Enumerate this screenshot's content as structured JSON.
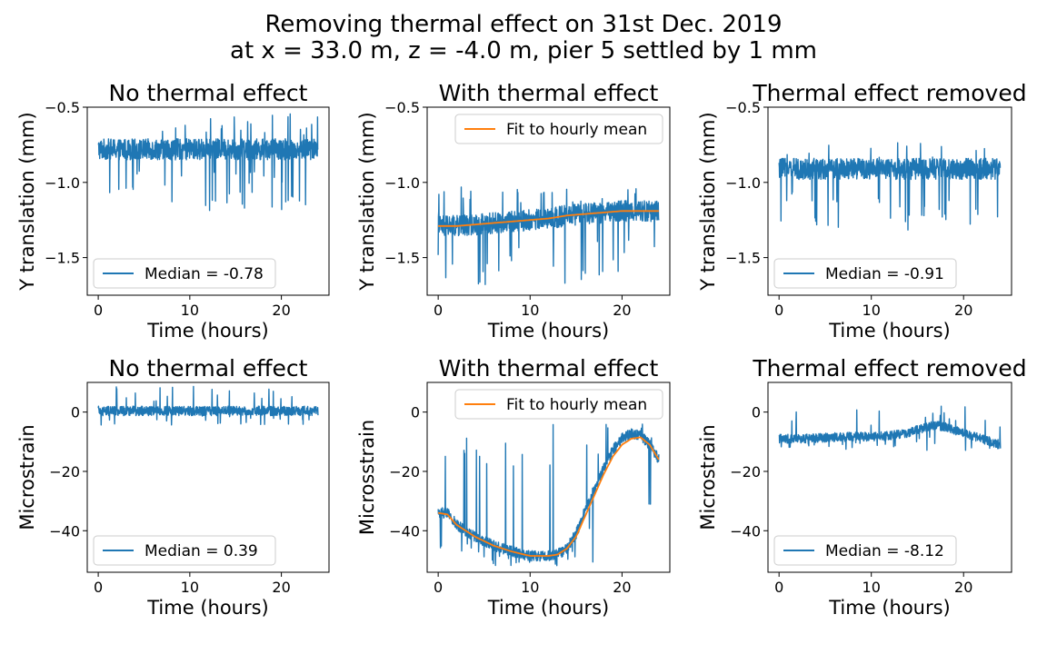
{
  "figure": {
    "title_line1": "Removing thermal effect on 31st Dec. 2019",
    "title_line2": "at x = 33.0 m, z = -4.0 m, pier 5 settled by 1 mm"
  },
  "colors": {
    "measured": "#1f77b4",
    "fit": "#ff7f0e"
  },
  "chart_data": [
    {
      "type": "line",
      "title": "No thermal effect",
      "xlabel": "Time (hours)",
      "ylabel": "Y translation (mm)",
      "xlim": [
        -1.2,
        25.2
      ],
      "ylim": [
        -1.75,
        -0.5
      ],
      "xticks": [
        0,
        10,
        20
      ],
      "yticks": [
        -0.5,
        -1.0,
        -1.5
      ],
      "ytick_labels": [
        "−0.5",
        "−1.0",
        "−1.5"
      ],
      "legend": "lower-left",
      "series": [
        {
          "name": "Median = -0.78",
          "kind": "noisy",
          "x": [
            0,
            2,
            4,
            6,
            8,
            10,
            12,
            14,
            16,
            18,
            20,
            22,
            24
          ],
          "y": [
            -0.78,
            -0.78,
            -0.78,
            -0.78,
            -0.78,
            -0.78,
            -0.78,
            -0.78,
            -0.78,
            -0.78,
            -0.78,
            -0.78,
            -0.78
          ],
          "band": 0.07,
          "spike_low": -1.19,
          "spike_high": -0.53
        }
      ]
    },
    {
      "type": "line",
      "title": "With thermal effect",
      "xlabel": "Time (hours)",
      "ylabel": "Y translation (mm)",
      "xlim": [
        -1.2,
        25.2
      ],
      "ylim": [
        -1.75,
        -0.5
      ],
      "xticks": [
        0,
        10,
        20
      ],
      "yticks": [
        -0.5,
        -1.0,
        -1.5
      ],
      "ytick_labels": [
        "−0.5",
        "−1.0",
        "−1.5"
      ],
      "legend": "upper-right",
      "series": [
        {
          "name": "",
          "kind": "noisy",
          "x": [
            0,
            2,
            4,
            6,
            8,
            10,
            12,
            14,
            16,
            18,
            20,
            22,
            24
          ],
          "y": [
            -1.29,
            -1.29,
            -1.28,
            -1.27,
            -1.26,
            -1.25,
            -1.24,
            -1.22,
            -1.21,
            -1.2,
            -1.19,
            -1.19,
            -1.19
          ],
          "band": 0.07,
          "spike_low": -1.71,
          "spike_high": -1.03
        },
        {
          "name": "Fit to hourly mean",
          "kind": "fit",
          "x": [
            0,
            2,
            4,
            6,
            8,
            10,
            12,
            14,
            16,
            18,
            20,
            22,
            24
          ],
          "y": [
            -1.29,
            -1.29,
            -1.28,
            -1.27,
            -1.26,
            -1.25,
            -1.24,
            -1.22,
            -1.21,
            -1.2,
            -1.19,
            -1.19,
            -1.19
          ]
        }
      ]
    },
    {
      "type": "line",
      "title": "Thermal effect removed",
      "xlabel": "Time (hours)",
      "ylabel": "Y translation (mm)",
      "xlim": [
        -1.2,
        25.2
      ],
      "ylim": [
        -1.75,
        -0.5
      ],
      "xticks": [
        0,
        10,
        20
      ],
      "yticks": [
        -0.5,
        -1.0,
        -1.5
      ],
      "ytick_labels": [
        "−0.5",
        "−1.0",
        "−1.5"
      ],
      "legend": "lower-left",
      "series": [
        {
          "name": "Median = -0.91",
          "kind": "noisy",
          "x": [
            0,
            2,
            4,
            6,
            8,
            10,
            12,
            14,
            16,
            18,
            20,
            22,
            24
          ],
          "y": [
            -0.91,
            -0.91,
            -0.91,
            -0.91,
            -0.91,
            -0.91,
            -0.91,
            -0.91,
            -0.91,
            -0.91,
            -0.91,
            -0.91,
            -0.91
          ],
          "band": 0.07,
          "spike_low": -1.32,
          "spike_high": -0.73
        }
      ]
    },
    {
      "type": "line",
      "title": "No thermal effect",
      "xlabel": "Time (hours)",
      "ylabel": "Microstrain",
      "xlim": [
        -1.2,
        25.2
      ],
      "ylim": [
        -54,
        10
      ],
      "xticks": [
        0,
        10,
        20
      ],
      "yticks": [
        0,
        -20,
        -40
      ],
      "ytick_labels": [
        "0",
        "−20",
        "−40"
      ],
      "legend": "lower-left",
      "series": [
        {
          "name": "Median = 0.39",
          "kind": "noisy",
          "x": [
            0,
            2,
            4,
            6,
            8,
            10,
            12,
            14,
            16,
            18,
            20,
            22,
            24
          ],
          "y": [
            0.39,
            0.39,
            0.39,
            0.39,
            0.39,
            0.39,
            0.39,
            0.39,
            0.39,
            0.39,
            0.39,
            0.39,
            0.39
          ],
          "band": 1.6,
          "spike_low": -4.5,
          "spike_high": 8.8
        }
      ]
    },
    {
      "type": "line",
      "title": "With thermal effect",
      "xlabel": "Time (hours)",
      "ylabel": "Microsstrain",
      "xlim": [
        -1.2,
        25.2
      ],
      "ylim": [
        -54,
        10
      ],
      "xticks": [
        0,
        10,
        20
      ],
      "yticks": [
        0,
        -20,
        -40
      ],
      "ytick_labels": [
        "0",
        "−20",
        "−40"
      ],
      "legend": "upper-right",
      "series": [
        {
          "name": "",
          "kind": "noisy",
          "x": [
            0,
            1,
            2,
            4,
            6,
            8,
            10,
            12,
            13,
            14,
            15,
            16,
            17,
            18,
            19,
            20,
            21,
            22,
            23,
            24
          ],
          "y": [
            -34,
            -34,
            -38,
            -42,
            -45,
            -47,
            -48.5,
            -48.5,
            -48,
            -46,
            -41,
            -33,
            -26,
            -19,
            -13,
            -9,
            -7,
            -8,
            -11,
            -16
          ],
          "band": 1.8,
          "spike_low": -52,
          "spike_high": -4
        },
        {
          "name": "Fit to hourly mean",
          "kind": "fit",
          "x": [
            0,
            1,
            2,
            4,
            6,
            8,
            10,
            12,
            13,
            14,
            15,
            16,
            17,
            18,
            19,
            20,
            21,
            22,
            23,
            24
          ],
          "y": [
            -34,
            -34.5,
            -38,
            -42,
            -45,
            -47,
            -48.5,
            -48.5,
            -48,
            -46,
            -42,
            -35,
            -28,
            -21,
            -15,
            -11,
            -9,
            -8.5,
            -11,
            -16
          ]
        }
      ]
    },
    {
      "type": "line",
      "title": "Thermal effect removed",
      "xlabel": "Time (hours)",
      "ylabel": "Microstrain",
      "xlim": [
        -1.2,
        25.2
      ],
      "ylim": [
        -54,
        10
      ],
      "xticks": [
        0,
        10,
        20
      ],
      "yticks": [
        0,
        -20,
        -40
      ],
      "ytick_labels": [
        "0",
        "−20",
        "−40"
      ],
      "legend": "lower-left",
      "series": [
        {
          "name": "Median = -8.12",
          "kind": "noisy",
          "x": [
            0,
            2,
            4,
            6,
            8,
            10,
            12,
            14,
            16,
            17,
            18,
            20,
            22,
            24
          ],
          "y": [
            -9,
            -9,
            -8.8,
            -8.5,
            -8.3,
            -8.3,
            -8,
            -7,
            -5,
            -4.5,
            -5,
            -7,
            -9,
            -11
          ],
          "band": 1.5,
          "spike_low": -13,
          "spike_high": 2
        }
      ]
    }
  ]
}
